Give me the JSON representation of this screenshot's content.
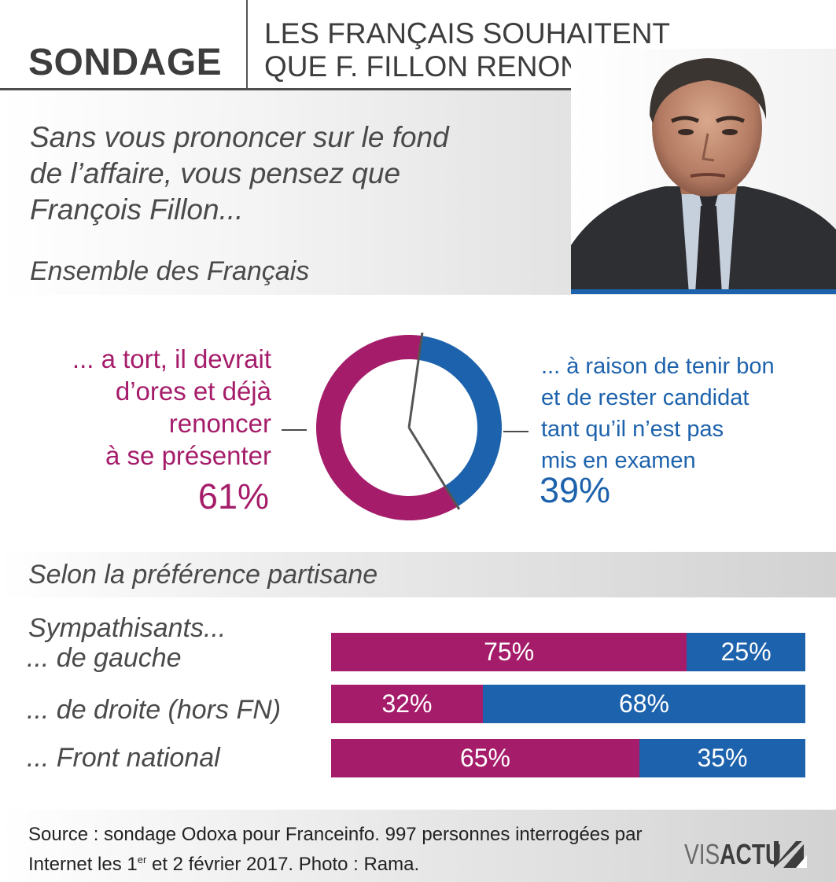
{
  "header": {
    "title": "SONDAGE",
    "headline": "LES FRANÇAIS SOUHAITENT\nQUE F. FILLON RENONCE"
  },
  "question": "Sans vous prononcer sur le fond\nde l’affaire, vous pensez que\nFrançois Fillon...",
  "subhead": "Ensemble des Français",
  "section2": {
    "title": "Selon la préférence partisane",
    "group_label": "Sympathisants..."
  },
  "colors": {
    "tort": "#a51d6a",
    "raison": "#1d62ac",
    "text": "#4a4a4a"
  },
  "chart_data": [
    {
      "type": "pie",
      "variant": "donut",
      "title": "Ensemble des Français",
      "slices": [
        {
          "name": "tort",
          "label": "... a tort, il devrait\nd’ores et déjà\nrenoncer\nà se présenter",
          "value": 61,
          "value_label": "61%",
          "color": "#a51d6a"
        },
        {
          "name": "raison",
          "label": "... à raison de tenir bon\net de rester candidat\ntant qu’il n’est pas\nmis en examen",
          "value": 39,
          "value_label": "39%",
          "color": "#1d62ac"
        }
      ]
    },
    {
      "type": "bar",
      "orientation": "horizontal",
      "stacked": true,
      "title": "Selon la préférence partisane",
      "categories": [
        "... de gauche",
        "... de droite (hors FN)",
        "... Front national"
      ],
      "series": [
        {
          "name": "a tort, il devrait renoncer",
          "color": "#a51d6a",
          "values": [
            75,
            32,
            65
          ],
          "labels": [
            "75%",
            "32%",
            "65%"
          ]
        },
        {
          "name": "a raison de tenir bon",
          "color": "#1d62ac",
          "values": [
            25,
            68,
            35
          ],
          "labels": [
            "25%",
            "68%",
            "35%"
          ]
        }
      ],
      "xlim": [
        0,
        100
      ]
    }
  ],
  "footer": {
    "source_main": "Source : sondage Odoxa pour Franceinfo. 997 personnes interrogées par Internet les 1",
    "source_sup": "er",
    "source_end": " et 2 février 2017.  Photo : Rama.",
    "logo_light": "VIS",
    "logo_bold": "ACTU"
  },
  "photo": {
    "icon": "portrait-photo"
  }
}
